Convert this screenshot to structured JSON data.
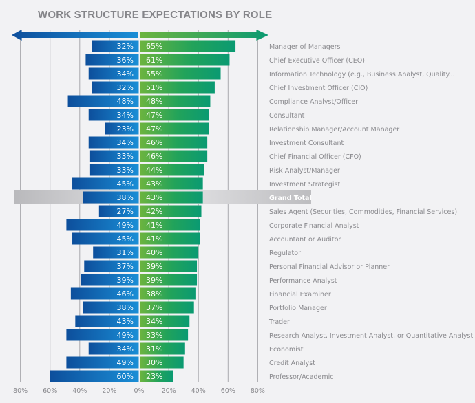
{
  "chart_data": {
    "type": "bar",
    "orientation": "horizontal-diverging",
    "title": "WORK STRUCTURE EXPECTATIONS BY ROLE",
    "xlim": [
      -80,
      80
    ],
    "x_ticks": [
      "80%",
      "60%",
      "40%",
      "20%",
      "0%",
      "20%",
      "40%",
      "60%",
      "80%"
    ],
    "grid": true,
    "highlight_category": "Grand Total",
    "colors": {
      "left_dark": "#0d4f9c",
      "left_light": "#1a8ed6",
      "right_light": "#6cb43f",
      "right_dark": "#0a9a72",
      "highlight_band": "#c4c4c7",
      "grid": "#a9a9ad"
    },
    "categories": [
      "Manager of Managers",
      "Chief Executive Officer (CEO)",
      "Information Technology (e.g., Business Analyst, Quality...",
      "Chief Investment Officer (CIO)",
      "Compliance Analyst/Officer",
      "Consultant",
      "Relationship Manager/Account Manager",
      "Investment Consultant",
      "Chief Financial Officer (CFO)",
      "Risk Analyst/Manager",
      "Investment Strategist",
      "Grand Total",
      "Sales Agent (Securities, Commodities, Financial Services)",
      "Corporate Financial Analyst",
      "Accountant or Auditor",
      "Regulator",
      "Personal Financial Advisor or Planner",
      "Performance Analyst",
      "Financial Examiner",
      "Portfolio Manager",
      "Trader",
      "Research Analyst, Investment Analyst, or Quantitative Analyst",
      "Economist",
      "Credit Analyst",
      "Professor/Academic"
    ],
    "series": [
      {
        "name": "left",
        "side": "left",
        "values": [
          32,
          36,
          34,
          32,
          48,
          34,
          23,
          34,
          33,
          33,
          45,
          38,
          27,
          49,
          45,
          31,
          37,
          39,
          46,
          38,
          43,
          49,
          34,
          49,
          60
        ]
      },
      {
        "name": "right",
        "side": "right",
        "values": [
          65,
          61,
          55,
          51,
          48,
          47,
          47,
          46,
          46,
          44,
          43,
          43,
          42,
          41,
          41,
          40,
          39,
          39,
          38,
          37,
          34,
          33,
          31,
          30,
          23
        ]
      }
    ]
  }
}
